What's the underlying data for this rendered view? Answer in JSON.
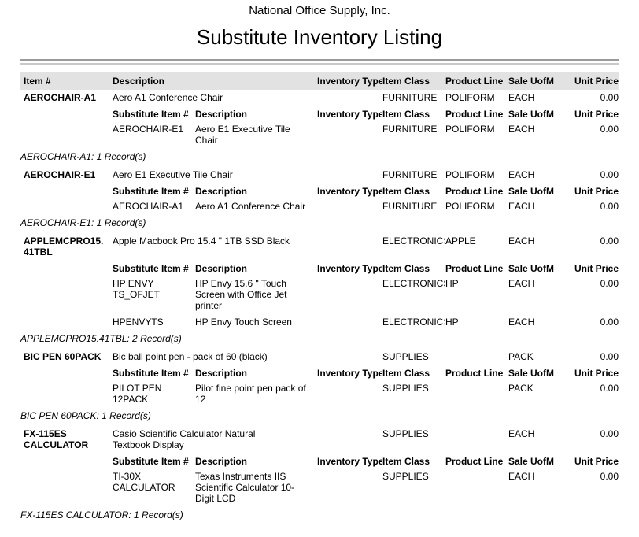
{
  "header": {
    "company": "National Office Supply, Inc.",
    "title": "Substitute Inventory Listing"
  },
  "columns": {
    "item": "Item #",
    "substitute_item": "Substitute Item #",
    "description": "Description",
    "inventory_type": "Inventory Type",
    "item_class": "Item Class",
    "product_line": "Product Line",
    "sale_uofm": "Sale UofM",
    "unit_price": "Unit Price"
  },
  "groups": [
    {
      "item": "AEROCHAIR-A1",
      "description": "Aero A1 Conference Chair",
      "inventory_type": "",
      "item_class": "FURNITURE",
      "product_line": "POLIFORM",
      "sale_uofm": "EACH",
      "unit_price": "0.00",
      "substitutes": [
        {
          "item": "AEROCHAIR-E1",
          "description": "Aero E1 Executive Tile Chair",
          "inventory_type": "",
          "item_class": "FURNITURE",
          "product_line": "POLIFORM",
          "sale_uofm": "EACH",
          "unit_price": "0.00"
        }
      ],
      "footer": "AEROCHAIR-A1: 1 Record(s)"
    },
    {
      "item": "AEROCHAIR-E1",
      "description": "Aero E1 Executive Tile Chair",
      "inventory_type": "",
      "item_class": "FURNITURE",
      "product_line": "POLIFORM",
      "sale_uofm": "EACH",
      "unit_price": "0.00",
      "substitutes": [
        {
          "item": "AEROCHAIR-A1",
          "description": "Aero A1 Conference Chair",
          "inventory_type": "",
          "item_class": "FURNITURE",
          "product_line": "POLIFORM",
          "sale_uofm": "EACH",
          "unit_price": "0.00"
        }
      ],
      "footer": "AEROCHAIR-E1: 1 Record(s)"
    },
    {
      "item": "APPLEMCPRO15.41TBL",
      "description": "Apple Macbook Pro 15.4 \" 1TB SSD Black",
      "inventory_type": "",
      "item_class": "ELECTRONICS",
      "product_line": "APPLE",
      "sale_uofm": "EACH",
      "unit_price": "0.00",
      "substitutes": [
        {
          "item": "HP ENVY TS_OFJET",
          "description": "HP Envy 15.6 \" Touch Screen with Office Jet printer",
          "inventory_type": "",
          "item_class": "ELECTRONICS",
          "product_line": "HP",
          "sale_uofm": "EACH",
          "unit_price": "0.00"
        },
        {
          "item": "HPENVYTS",
          "description": "HP Envy Touch Screen",
          "inventory_type": "",
          "item_class": "ELECTRONICS",
          "product_line": "HP",
          "sale_uofm": "EACH",
          "unit_price": "0.00"
        }
      ],
      "footer": "APPLEMCPRO15.41TBL: 2 Record(s)"
    },
    {
      "item": "BIC PEN 60PACK",
      "description": "Bic ball point pen - pack of 60 (black)",
      "inventory_type": "",
      "item_class": "SUPPLIES",
      "product_line": "",
      "sale_uofm": "PACK",
      "unit_price": "0.00",
      "substitutes": [
        {
          "item": "PILOT PEN 12PACK",
          "description": "Pilot fine point pen pack of 12",
          "inventory_type": "",
          "item_class": "SUPPLIES",
          "product_line": "",
          "sale_uofm": "PACK",
          "unit_price": "0.00"
        }
      ],
      "footer": "BIC PEN 60PACK: 1 Record(s)"
    },
    {
      "item": "FX-115ES CALCULATOR",
      "description": "Casio Scientific Calculator Natural Textbook Display",
      "inventory_type": "",
      "item_class": "SUPPLIES",
      "product_line": "",
      "sale_uofm": "EACH",
      "unit_price": "0.00",
      "substitutes": [
        {
          "item": "TI-30X CALCULATOR",
          "description": "Texas Instruments IIS Scientific Calculator 10-Digit LCD",
          "inventory_type": "",
          "item_class": "SUPPLIES",
          "product_line": "",
          "sale_uofm": "EACH",
          "unit_price": "0.00"
        }
      ],
      "footer": "FX-115ES CALCULATOR: 1 Record(s)"
    }
  ],
  "colors": {
    "header_band": "#e2e2e2",
    "rule_dark": "#9b9b9b",
    "rule_light": "#c9c9c9",
    "text": "#000000",
    "page_background": "#ffffff"
  }
}
